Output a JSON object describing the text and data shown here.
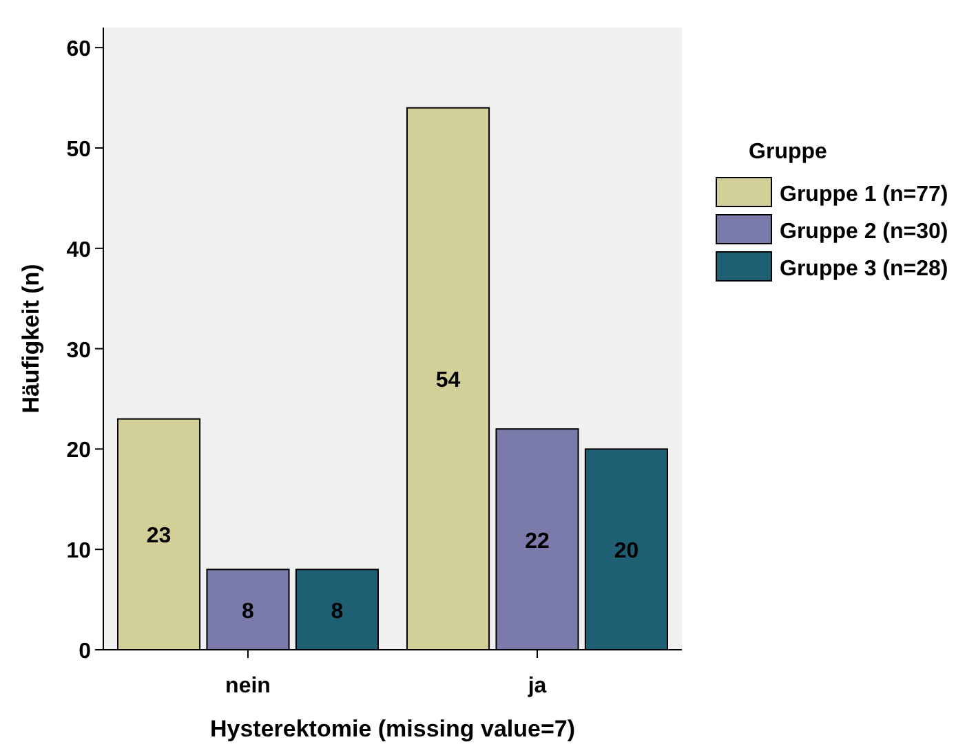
{
  "chart_data": {
    "type": "bar",
    "xlabel": "Hysterektomie (missing value=7)",
    "ylabel": "Häufigkeit (n)",
    "legend_title": "Gruppe",
    "categories": [
      "nein",
      "ja"
    ],
    "series": [
      {
        "name": "Gruppe 1 (n=77)",
        "color": "#d3cf98",
        "values": [
          23,
          54
        ]
      },
      {
        "name": "Gruppe 2 (n=30)",
        "color": "#7b7bab",
        "values": [
          8,
          22
        ]
      },
      {
        "name": "Gruppe 3 (n=28)",
        "color": "#1f5f73",
        "values": [
          8,
          20
        ]
      }
    ],
    "ylim": [
      0,
      62
    ],
    "yticks": [
      0,
      10,
      20,
      30,
      40,
      50,
      60
    ],
    "data_labels": true,
    "legend": "right",
    "grid": false
  }
}
